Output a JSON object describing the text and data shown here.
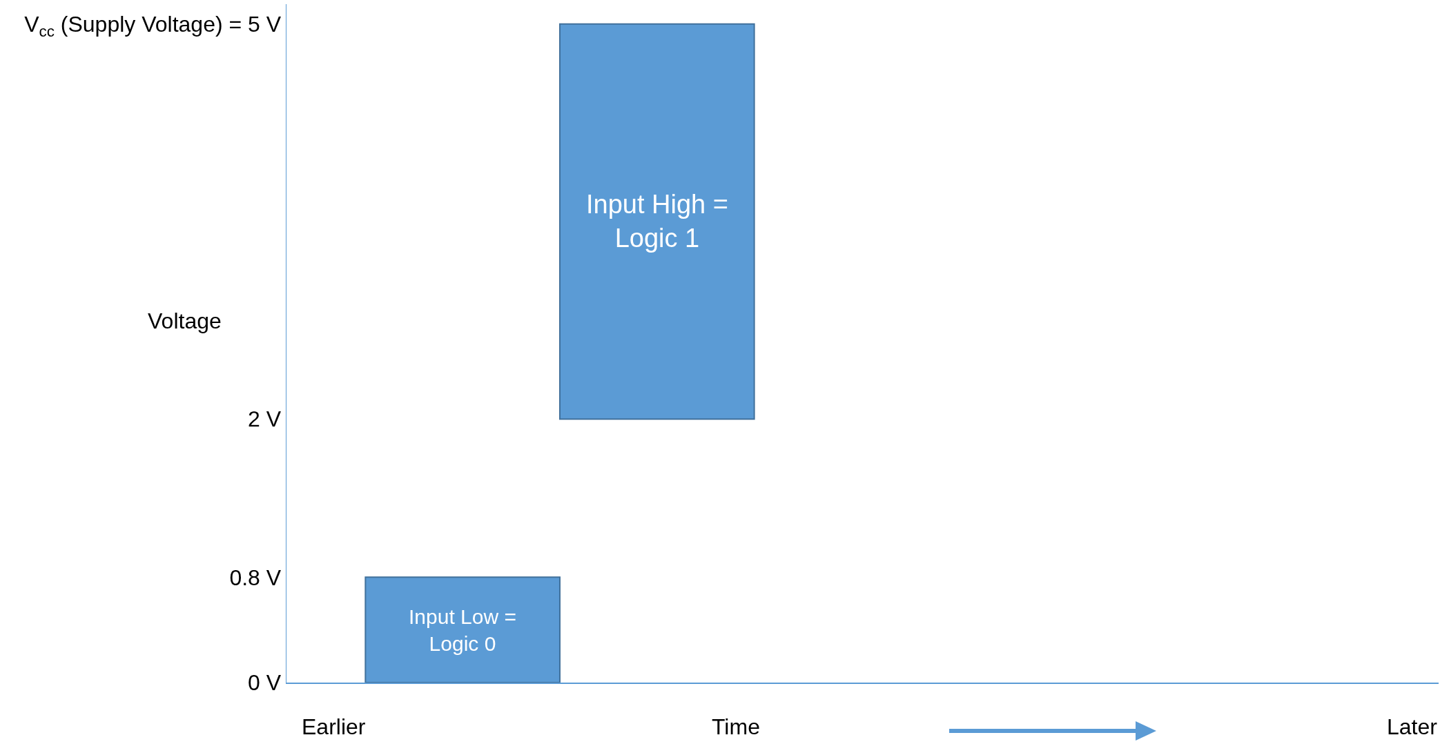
{
  "chart_data": {
    "type": "bar",
    "xlabel": "Time",
    "ylabel": "Voltage",
    "categories": [
      null,
      null,
      null,
      null,
      null,
      null
    ],
    "values": [
      0.8,
      3,
      null,
      null,
      null,
      null
    ],
    "base": [
      0,
      2,
      null,
      null,
      null,
      null
    ],
    "value_labels": [
      "Input Low = Logic 0",
      "Input High = Logic 1",
      null,
      null,
      null,
      null
    ],
    "color": "#5b9bd5",
    "ylim": [
      0,
      5.15
    ],
    "yticks": [
      {
        "value": 0,
        "label": "0 V"
      },
      {
        "value": 0.8,
        "label": "0.8 V"
      },
      {
        "value": 2,
        "label": "2 V"
      },
      {
        "value": 5,
        "label": "V$_{cc}$ (Supply Voltage) = 5 V"
      }
    ],
    "annotations": [
      "Earlier",
      "Later"
    ],
    "grid": false,
    "legend": false
  }
}
